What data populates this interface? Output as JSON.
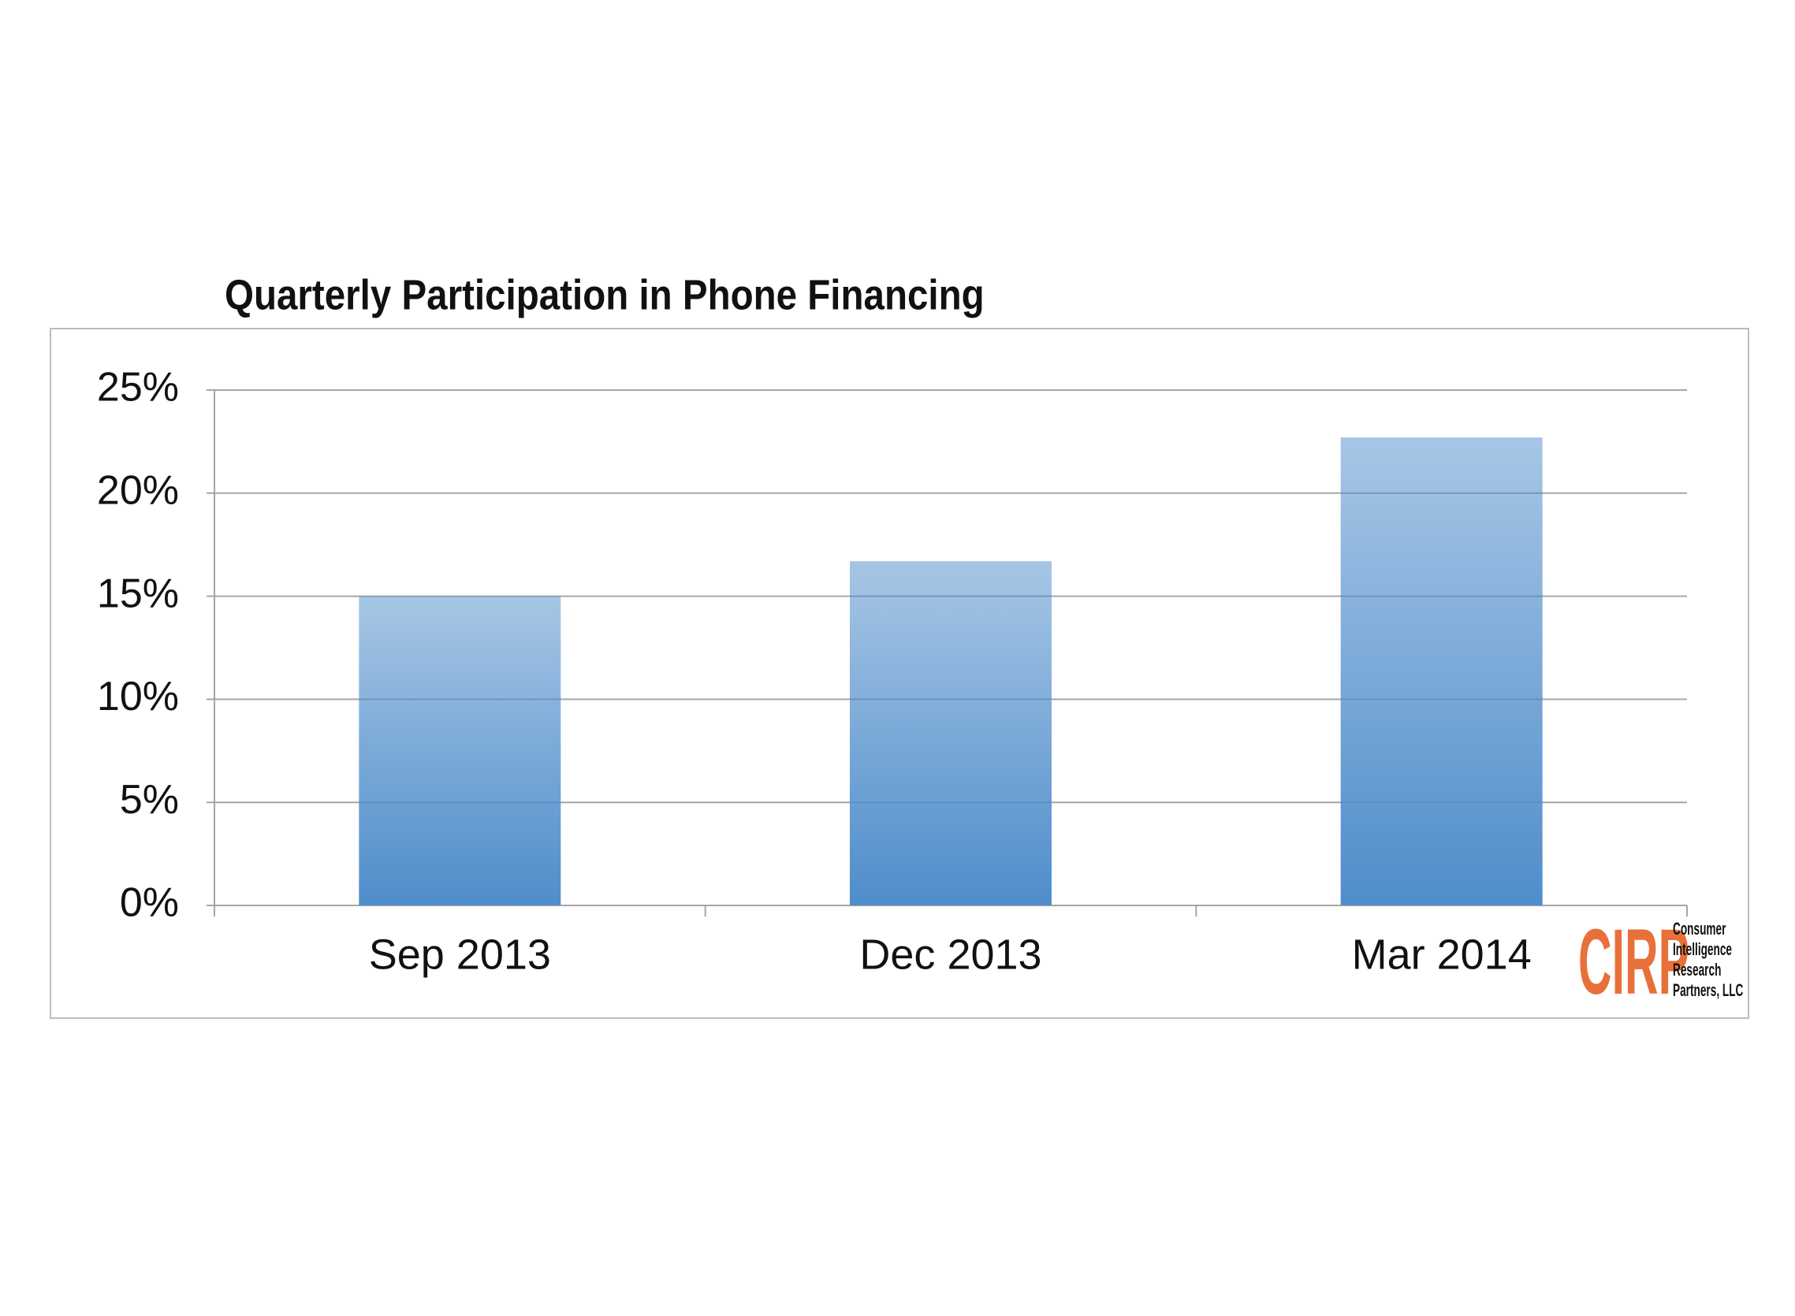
{
  "chart_data": {
    "type": "bar",
    "title": "Quarterly Participation in Phone Financing",
    "categories": [
      "Sep 2013",
      "Dec 2013",
      "Mar 2014"
    ],
    "values": [
      15,
      16.7,
      22.7
    ],
    "color": "#4f8dcb",
    "ylim": [
      0,
      25
    ],
    "yticks": [
      {
        "value": 0,
        "label": "0%"
      },
      {
        "value": 5,
        "label": "5%"
      },
      {
        "value": 10,
        "label": "10%"
      },
      {
        "value": 15,
        "label": "15%"
      },
      {
        "value": 20,
        "label": "20%"
      },
      {
        "value": 25,
        "label": "25%"
      }
    ],
    "grid": true,
    "logo": {
      "mark": "CIRP",
      "lines": [
        "Consumer",
        "Intelligence",
        "Research",
        "Partners, LLC"
      ]
    }
  }
}
